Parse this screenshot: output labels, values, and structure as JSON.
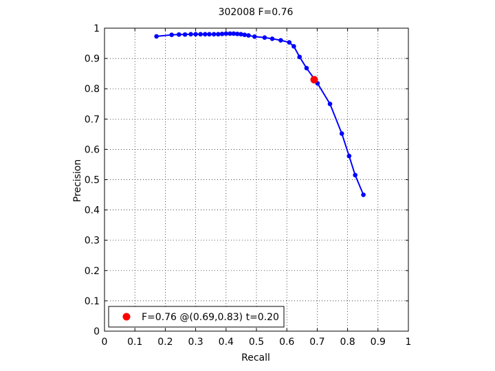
{
  "chart_data": {
    "type": "line",
    "title": "302008 F=0.76",
    "xlabel": "Recall",
    "ylabel": "Precision",
    "xlim": [
      0,
      1
    ],
    "ylim": [
      0,
      1
    ],
    "xticks": [
      0,
      0.1,
      0.2,
      0.3,
      0.4,
      0.5,
      0.6,
      0.7,
      0.8,
      0.9,
      1
    ],
    "xtick_labels": [
      "0",
      "0.1",
      "0.2",
      "0.3",
      "0.4",
      "0.5",
      "0.6",
      "0.7",
      "0.8",
      "0.9",
      "1"
    ],
    "yticks": [
      0,
      0.1,
      0.2,
      0.3,
      0.4,
      0.5,
      0.6,
      0.7,
      0.8,
      0.9,
      1
    ],
    "ytick_labels": [
      "0",
      "0.1",
      "0.2",
      "0.3",
      "0.4",
      "0.5",
      "0.6",
      "0.7",
      "0.8",
      "0.9",
      "1"
    ],
    "grid": true,
    "legend_position": "bottom-left",
    "series": [
      {
        "color": "#0000ff",
        "x": [
          0.171,
          0.221,
          0.245,
          0.265,
          0.284,
          0.3,
          0.316,
          0.331,
          0.345,
          0.36,
          0.374,
          0.387,
          0.4,
          0.413,
          0.425,
          0.437,
          0.449,
          0.461,
          0.474,
          0.494,
          0.527,
          0.552,
          0.58,
          0.608,
          0.623,
          0.642,
          0.665,
          0.701,
          0.742,
          0.781,
          0.805,
          0.825,
          0.852
        ],
        "y": [
          0.973,
          0.978,
          0.979,
          0.979,
          0.98,
          0.98,
          0.98,
          0.98,
          0.98,
          0.98,
          0.98,
          0.981,
          0.982,
          0.982,
          0.982,
          0.981,
          0.98,
          0.978,
          0.976,
          0.972,
          0.969,
          0.965,
          0.96,
          0.953,
          0.94,
          0.905,
          0.868,
          0.818,
          0.75,
          0.652,
          0.578,
          0.515,
          0.45
        ]
      }
    ],
    "highlight_point": {
      "x": 0.69,
      "y": 0.83,
      "color": "#ff0000"
    },
    "legend_label": "F=0.76 @(0.69,0.83) t=0.20"
  }
}
